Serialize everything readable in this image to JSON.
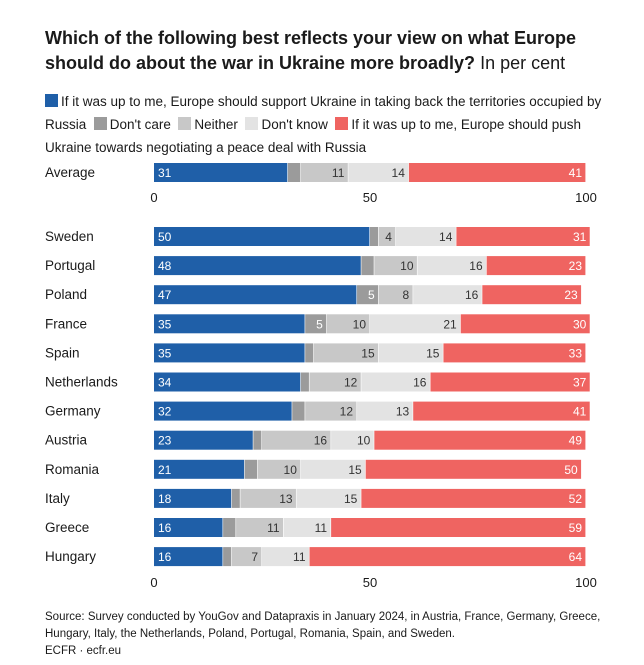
{
  "title": "Which of the following best reflects your view on what Europe should do about the war in Ukraine more broadly?",
  "subtitle": "In per cent",
  "source": "Source: Survey conducted by YouGov and Datapraxis in January 2024, in Austria, France, Germany, Greece, Hungary, Italy, the Netherlands, Poland, Portugal, Romania, Spain, and Sweden.",
  "credit": "ECFR · ecfr.eu",
  "chart_data": {
    "type": "bar",
    "stacked": true,
    "orientation": "horizontal",
    "xlim": [
      0,
      100
    ],
    "x_ticks": [
      0,
      50,
      100
    ],
    "series": [
      {
        "name": "If it was up to me, Europe should support Ukraine in taking back the territories occupied by Russia",
        "color": "#1f5fa8",
        "label_color": "#ffffff"
      },
      {
        "name": "Don't care",
        "color": "#9b9b9b",
        "label_color": "#ffffff"
      },
      {
        "name": "Neither",
        "color": "#c8c8c8",
        "label_color": "#333333"
      },
      {
        "name": "Don't know",
        "color": "#e3e3e3",
        "label_color": "#333333"
      },
      {
        "name": "If it was up to me, Europe should push Ukraine towards negotiating a peace deal with Russia",
        "color": "#ef6461",
        "label_color": "#ffffff"
      }
    ],
    "average": {
      "category": "Average",
      "values": [
        31,
        3,
        11,
        14,
        41
      ],
      "labels": [
        "31",
        "",
        "11",
        "14",
        "41"
      ]
    },
    "categories": [
      "Sweden",
      "Portugal",
      "Poland",
      "France",
      "Spain",
      "Netherlands",
      "Germany",
      "Austria",
      "Romania",
      "Italy",
      "Greece",
      "Hungary"
    ],
    "rows": [
      {
        "values": [
          50,
          2,
          4,
          14,
          31
        ],
        "labels": [
          "50",
          "",
          "4",
          "14",
          "31"
        ]
      },
      {
        "values": [
          48,
          3,
          10,
          16,
          23
        ],
        "labels": [
          "48",
          "",
          "10",
          "16",
          "23"
        ]
      },
      {
        "values": [
          47,
          5,
          8,
          16,
          23
        ],
        "labels": [
          "47",
          "5",
          "8",
          "16",
          "23"
        ]
      },
      {
        "values": [
          35,
          5,
          10,
          21,
          30
        ],
        "labels": [
          "35",
          "5",
          "10",
          "21",
          "30"
        ]
      },
      {
        "values": [
          35,
          2,
          15,
          15,
          33
        ],
        "labels": [
          "35",
          "",
          "15",
          "15",
          "33"
        ]
      },
      {
        "values": [
          34,
          2,
          12,
          16,
          37
        ],
        "labels": [
          "34",
          "",
          "12",
          "16",
          "37"
        ]
      },
      {
        "values": [
          32,
          3,
          12,
          13,
          41
        ],
        "labels": [
          "32",
          "",
          "12",
          "13",
          "41"
        ]
      },
      {
        "values": [
          23,
          2,
          16,
          10,
          49
        ],
        "labels": [
          "23",
          "",
          "16",
          "10",
          "49"
        ]
      },
      {
        "values": [
          21,
          3,
          10,
          15,
          50
        ],
        "labels": [
          "21",
          "",
          "10",
          "15",
          "50"
        ]
      },
      {
        "values": [
          18,
          2,
          13,
          15,
          52
        ],
        "labels": [
          "18",
          "",
          "13",
          "15",
          "52"
        ]
      },
      {
        "values": [
          16,
          3,
          11,
          11,
          59
        ],
        "labels": [
          "16",
          "",
          "11",
          "11",
          "59"
        ]
      },
      {
        "values": [
          16,
          2,
          7,
          11,
          64
        ],
        "labels": [
          "16",
          "",
          "7",
          "11",
          "64"
        ]
      }
    ]
  }
}
